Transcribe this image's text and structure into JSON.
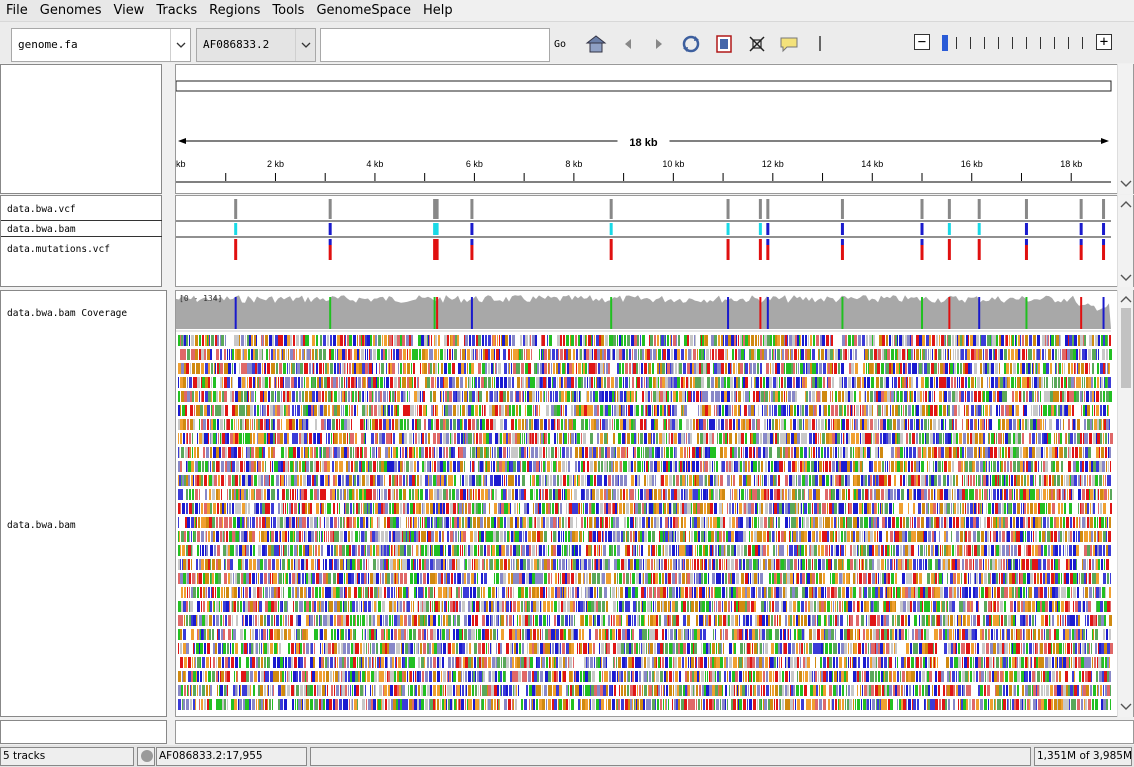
{
  "menu": [
    "File",
    "Genomes",
    "View",
    "Tracks",
    "Regions",
    "Tools",
    "GenomeSpace",
    "Help"
  ],
  "toolbar": {
    "genome": "genome.fa",
    "chromosome": "AF086833.2",
    "locus": "",
    "go_label": "Go",
    "icons": [
      "home-icon",
      "back-icon",
      "forward-icon",
      "refresh-icon",
      "roi-icon",
      "resize-icon",
      "popup-text-icon",
      "ruler-divider-icon"
    ],
    "zoom": {
      "out": "−",
      "in": "+",
      "ticks": 11,
      "level": 0
    }
  },
  "ruler": {
    "span_label": "18 kb",
    "ticks": [
      "kb",
      "2 kb",
      "4 kb",
      "6 kb",
      "8 kb",
      "10 kb",
      "12 kb",
      "14 kb",
      "16 kb",
      "18 kb"
    ]
  },
  "tracks": {
    "vcf_group": [
      "data.bwa.vcf",
      "data.bwa.bam",
      "data.mutations.vcf"
    ],
    "coverage_name": "data.bwa.bam Coverage",
    "coverage_range": "[0 - 134]",
    "alignment_name": "data.bwa.bam"
  },
  "variants": {
    "positions_kb": [
      1.2,
      3.1,
      5.2,
      5.25,
      5.95,
      8.75,
      11.1,
      11.75,
      11.9,
      13.4,
      15.0,
      15.55,
      16.15,
      17.1,
      18.2,
      18.65
    ],
    "colors": {
      "grey": "#888888",
      "cyan": "#19d9e6",
      "blue": "#1a1acc",
      "red": "#e01010",
      "green": "#20c020"
    }
  },
  "status": {
    "tracks": "5 tracks",
    "position": "AF086833.2:17,955",
    "memory": "1,351M of 3,985M"
  }
}
